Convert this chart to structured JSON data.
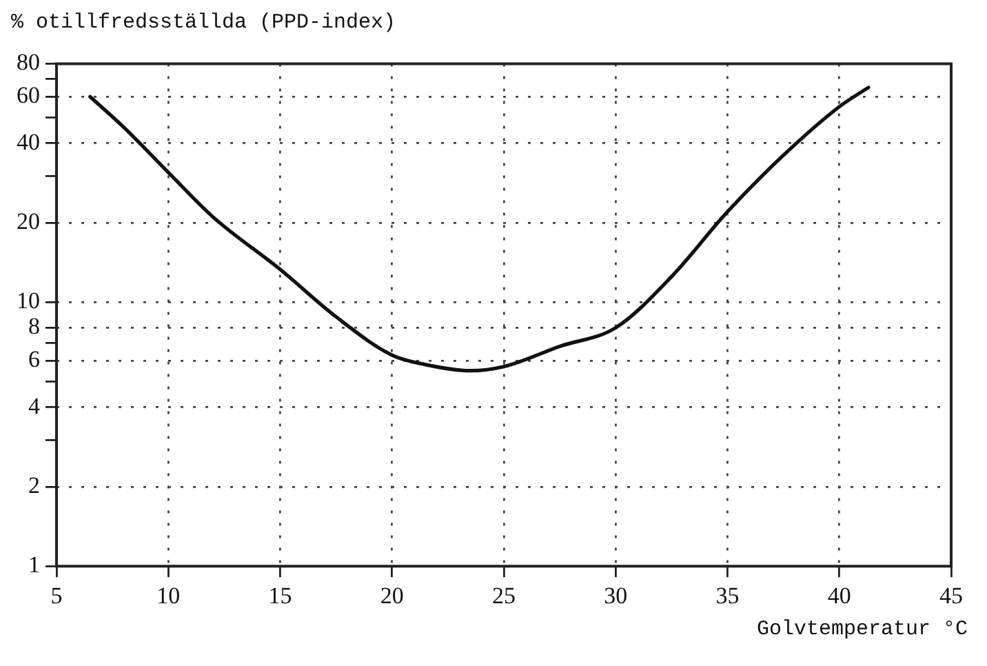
{
  "chart_data": {
    "type": "line",
    "ylabel": "% otillfredsställda (PPD-index)",
    "xlabel": "Golvtemperatur °C",
    "x": [
      6.5,
      8,
      10,
      12,
      15,
      17.5,
      20,
      21.5,
      23.5,
      25,
      27.5,
      30,
      32.5,
      35,
      37.5,
      40,
      41.3
    ],
    "series": [
      {
        "color": "#111111",
        "values": [
          60,
          46,
          31,
          21,
          13.3,
          8.8,
          6.3,
          5.8,
          5.5,
          5.7,
          6.8,
          8,
          12.5,
          22,
          36,
          55,
          65
        ]
      }
    ],
    "xlim": [
      5,
      45
    ],
    "xticks": [
      5,
      10,
      15,
      20,
      25,
      30,
      35,
      40,
      45
    ],
    "ylim": [
      1,
      80
    ],
    "yticks": [
      1,
      2,
      {
        "value": 3,
        "label": null
      },
      4,
      {
        "value": 5,
        "label": null
      },
      6,
      {
        "value": 7,
        "label": null
      },
      8,
      10,
      20,
      {
        "value": 30,
        "label": null
      },
      40,
      {
        "value": 50,
        "label": null
      },
      60,
      {
        "value": 70,
        "label": null
      },
      80
    ],
    "log": "y",
    "grid": true,
    "legend": false,
    "marker": "none",
    "line_style": "solid"
  }
}
